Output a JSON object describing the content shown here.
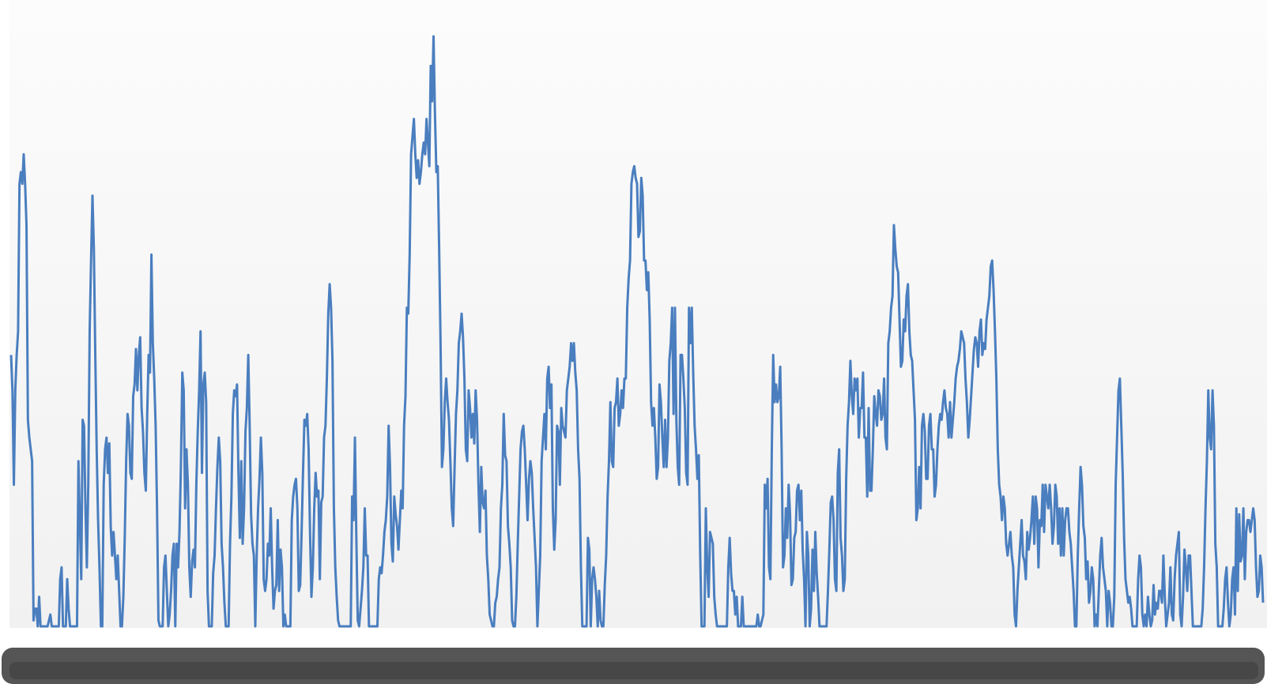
{
  "colors": {
    "line": "#4a7ebf",
    "plot_background_top": "#fcfcfc",
    "plot_background_bottom": "#f1f1f1",
    "axis_bar": "#555555",
    "axis_bar_edge": "#3c3c3c"
  },
  "chart_data": {
    "type": "line",
    "title": "",
    "xlabel": "",
    "ylabel": "",
    "grid": false,
    "legend": "none",
    "ylim": [
      0,
      100
    ],
    "series": [
      {
        "values": [
          46,
          40,
          24,
          40,
          46,
          50,
          75,
          77,
          75,
          80,
          75,
          68,
          35,
          32,
          30,
          28,
          1,
          3,
          3,
          0,
          5,
          0,
          0,
          0,
          0,
          0,
          0,
          1,
          2,
          0,
          0,
          0,
          0,
          0,
          0,
          8,
          10,
          0,
          0,
          0,
          8,
          3,
          0,
          0,
          0,
          0,
          0,
          0,
          28,
          18,
          8,
          35,
          34,
          20,
          10,
          24,
          50,
          62,
          73,
          64,
          46,
          30,
          18,
          10,
          0,
          0,
          24,
          30,
          32,
          26,
          31,
          17,
          12,
          16,
          12,
          8,
          12,
          6,
          0,
          0,
          5,
          15,
          28,
          36,
          34,
          26,
          25,
          39,
          41,
          47,
          40,
          46,
          49,
          37,
          33,
          26,
          23,
          36,
          46,
          43,
          63,
          48,
          42,
          34,
          20,
          1,
          0,
          0,
          0,
          10,
          12,
          6,
          0,
          2,
          6,
          12,
          14,
          0,
          14,
          10,
          16,
          27,
          43,
          40,
          20,
          30,
          24,
          10,
          5,
          11,
          13,
          10,
          24,
          33,
          40,
          50,
          26,
          41,
          43,
          38,
          6,
          0,
          0,
          0,
          9,
          12,
          20,
          27,
          32,
          28,
          14,
          10,
          4,
          0,
          0,
          0,
          14,
          22,
          36,
          40,
          39,
          41,
          26,
          15,
          28,
          14,
          20,
          33,
          37,
          46,
          34,
          19,
          14,
          12,
          0,
          12,
          20,
          25,
          32,
          26,
          8,
          6,
          8,
          14,
          12,
          20,
          10,
          3,
          6,
          7,
          18,
          6,
          13,
          10,
          0,
          2,
          0,
          0,
          0,
          0,
          18,
          22,
          24,
          25,
          20,
          6,
          7,
          16,
          26,
          35,
          34,
          36,
          30,
          16,
          5,
          10,
          20,
          26,
          22,
          23,
          8,
          21,
          22,
          32,
          34,
          42,
          53,
          58,
          54,
          45,
          20,
          10,
          5,
          1,
          0,
          0,
          0,
          0,
          0,
          0,
          0,
          0,
          0,
          22,
          18,
          32,
          15,
          1,
          0,
          3,
          6,
          10,
          20,
          12,
          12,
          0,
          0,
          0,
          0,
          0,
          0,
          0,
          8,
          10,
          9,
          12,
          16,
          18,
          22,
          34,
          27,
          14,
          11,
          22,
          19,
          17,
          13,
          18,
          23,
          20,
          34,
          39,
          54,
          53,
          63,
          80,
          83,
          86,
          80,
          76,
          79,
          75,
          77,
          80,
          82,
          80,
          86,
          82,
          78,
          95,
          89,
          100,
          87,
          77,
          78,
          64,
          48,
          27,
          30,
          38,
          42,
          38,
          35,
          28,
          20,
          17,
          27,
          36,
          40,
          48,
          50,
          53,
          49,
          42,
          30,
          28,
          40,
          37,
          32,
          36,
          31,
          40,
          35,
          24,
          16,
          27,
          21,
          20,
          23,
          12,
          8,
          2,
          1,
          0,
          0,
          4,
          5,
          8,
          10,
          20,
          24,
          36,
          29,
          28,
          17,
          14,
          10,
          1,
          0,
          0,
          5,
          14,
          22,
          30,
          33,
          34,
          30,
          24,
          18,
          25,
          28,
          26,
          20,
          15,
          10,
          0,
          6,
          12,
          28,
          32,
          36,
          30,
          42,
          44,
          37,
          41,
          20,
          13,
          18,
          34,
          33,
          24,
          37,
          34,
          33,
          32,
          40,
          42,
          44,
          48,
          45,
          48,
          43,
          40,
          30,
          25,
          10,
          0,
          0,
          0,
          0,
          15,
          13,
          0,
          8,
          10,
          8,
          5,
          0,
          6,
          1,
          0,
          0,
          7,
          12,
          22,
          28,
          38,
          28,
          27,
          37,
          38,
          42,
          34,
          36,
          40,
          37,
          42,
          42,
          54,
          59,
          62,
          75,
          77,
          78,
          76,
          75,
          66,
          67,
          76,
          73,
          62,
          62,
          57,
          60,
          52,
          38,
          34,
          37,
          32,
          25,
          27,
          41,
          38,
          32,
          27,
          35,
          27,
          32,
          45,
          48,
          54,
          36,
          54,
          35,
          27,
          24,
          46,
          46,
          42,
          37,
          26,
          24,
          54,
          48,
          54,
          43,
          34,
          30,
          25,
          29,
          12,
          0,
          0,
          0,
          20,
          10,
          5,
          16,
          15,
          14,
          5,
          2,
          0,
          0,
          0,
          0,
          0,
          0,
          0,
          0,
          10,
          15,
          9,
          6,
          6,
          2,
          5,
          0,
          0,
          0,
          5,
          0,
          0,
          0,
          0,
          0,
          0,
          0,
          0,
          0,
          0,
          2,
          0,
          0,
          1,
          2,
          24,
          20,
          25,
          10,
          8,
          30,
          46,
          38,
          41,
          38,
          39,
          44,
          30,
          10,
          12,
          20,
          15,
          24,
          19,
          7,
          8,
          15,
          16,
          23,
          24,
          18,
          23,
          13,
          8,
          0,
          16,
          12,
          0,
          3,
          13,
          6,
          16,
          9,
          5,
          0,
          0,
          0,
          0,
          0,
          0,
          6,
          13,
          21,
          22,
          18,
          8,
          6,
          26,
          30,
          15,
          12,
          6,
          8,
          25,
          34,
          38,
          45,
          39,
          36,
          42,
          40,
          42,
          32,
          37,
          37,
          43,
          32,
          32,
          22,
          37,
          23,
          23,
          30,
          39,
          36,
          34,
          40,
          39,
          35,
          36,
          42,
          32,
          30,
          48,
          50,
          54,
          56,
          68,
          64,
          61,
          60,
          52,
          44,
          45,
          52,
          50,
          56,
          58,
          50,
          46,
          45,
          40,
          35,
          18,
          20,
          27,
          20,
          34,
          36,
          33,
          25,
          25,
          34,
          36,
          30,
          30,
          22,
          24,
          30,
          34,
          36,
          35,
          38,
          40,
          37,
          36,
          32,
          38,
          32,
          35,
          38,
          42,
          44,
          45,
          47,
          50,
          49,
          48,
          42,
          38,
          32,
          35,
          39,
          43,
          47,
          49,
          48,
          44,
          50,
          52,
          46,
          48,
          47,
          52,
          54,
          56,
          61,
          62,
          57,
          50,
          42,
          30,
          24,
          22,
          18,
          22,
          20,
          14,
          12,
          14,
          16,
          12,
          10,
          2,
          0,
          6,
          10,
          14,
          18,
          12,
          11,
          8,
          16,
          13,
          15,
          18,
          22,
          14,
          22,
          20,
          10,
          18,
          17,
          24,
          16,
          24,
          22,
          20,
          24,
          20,
          14,
          17,
          24,
          22,
          14,
          20,
          12,
          20,
          12,
          18,
          20,
          20,
          16,
          14,
          10,
          6,
          0,
          0,
          12,
          20,
          27,
          24,
          17,
          15,
          8,
          11,
          4,
          6,
          10,
          8,
          0,
          2,
          0,
          6,
          12,
          15,
          10,
          8,
          6,
          0,
          6,
          4,
          0,
          0,
          5,
          24,
          32,
          40,
          42,
          34,
          26,
          15,
          8,
          6,
          4,
          5,
          3,
          0,
          0,
          0,
          0,
          8,
          12,
          10,
          2,
          0,
          2,
          0,
          5,
          2,
          0,
          1,
          7,
          2,
          4,
          3,
          6,
          6,
          4,
          12,
          5,
          0,
          2,
          4,
          10,
          2,
          1,
          8,
          12,
          14,
          16,
          2,
          0,
          5,
          13,
          10,
          6,
          12,
          12,
          6,
          0,
          0,
          0,
          0,
          0,
          0,
          0,
          3,
          10,
          20,
          28,
          40,
          32,
          30,
          40,
          34,
          14,
          10,
          0,
          0,
          0,
          0,
          3,
          8,
          10,
          4,
          0,
          2,
          8,
          10,
          2,
          20,
          6,
          19,
          11,
          12,
          20,
          8,
          16,
          18,
          18,
          16,
          18,
          20,
          18,
          10,
          5,
          6,
          12,
          10,
          4
        ]
      }
    ]
  }
}
